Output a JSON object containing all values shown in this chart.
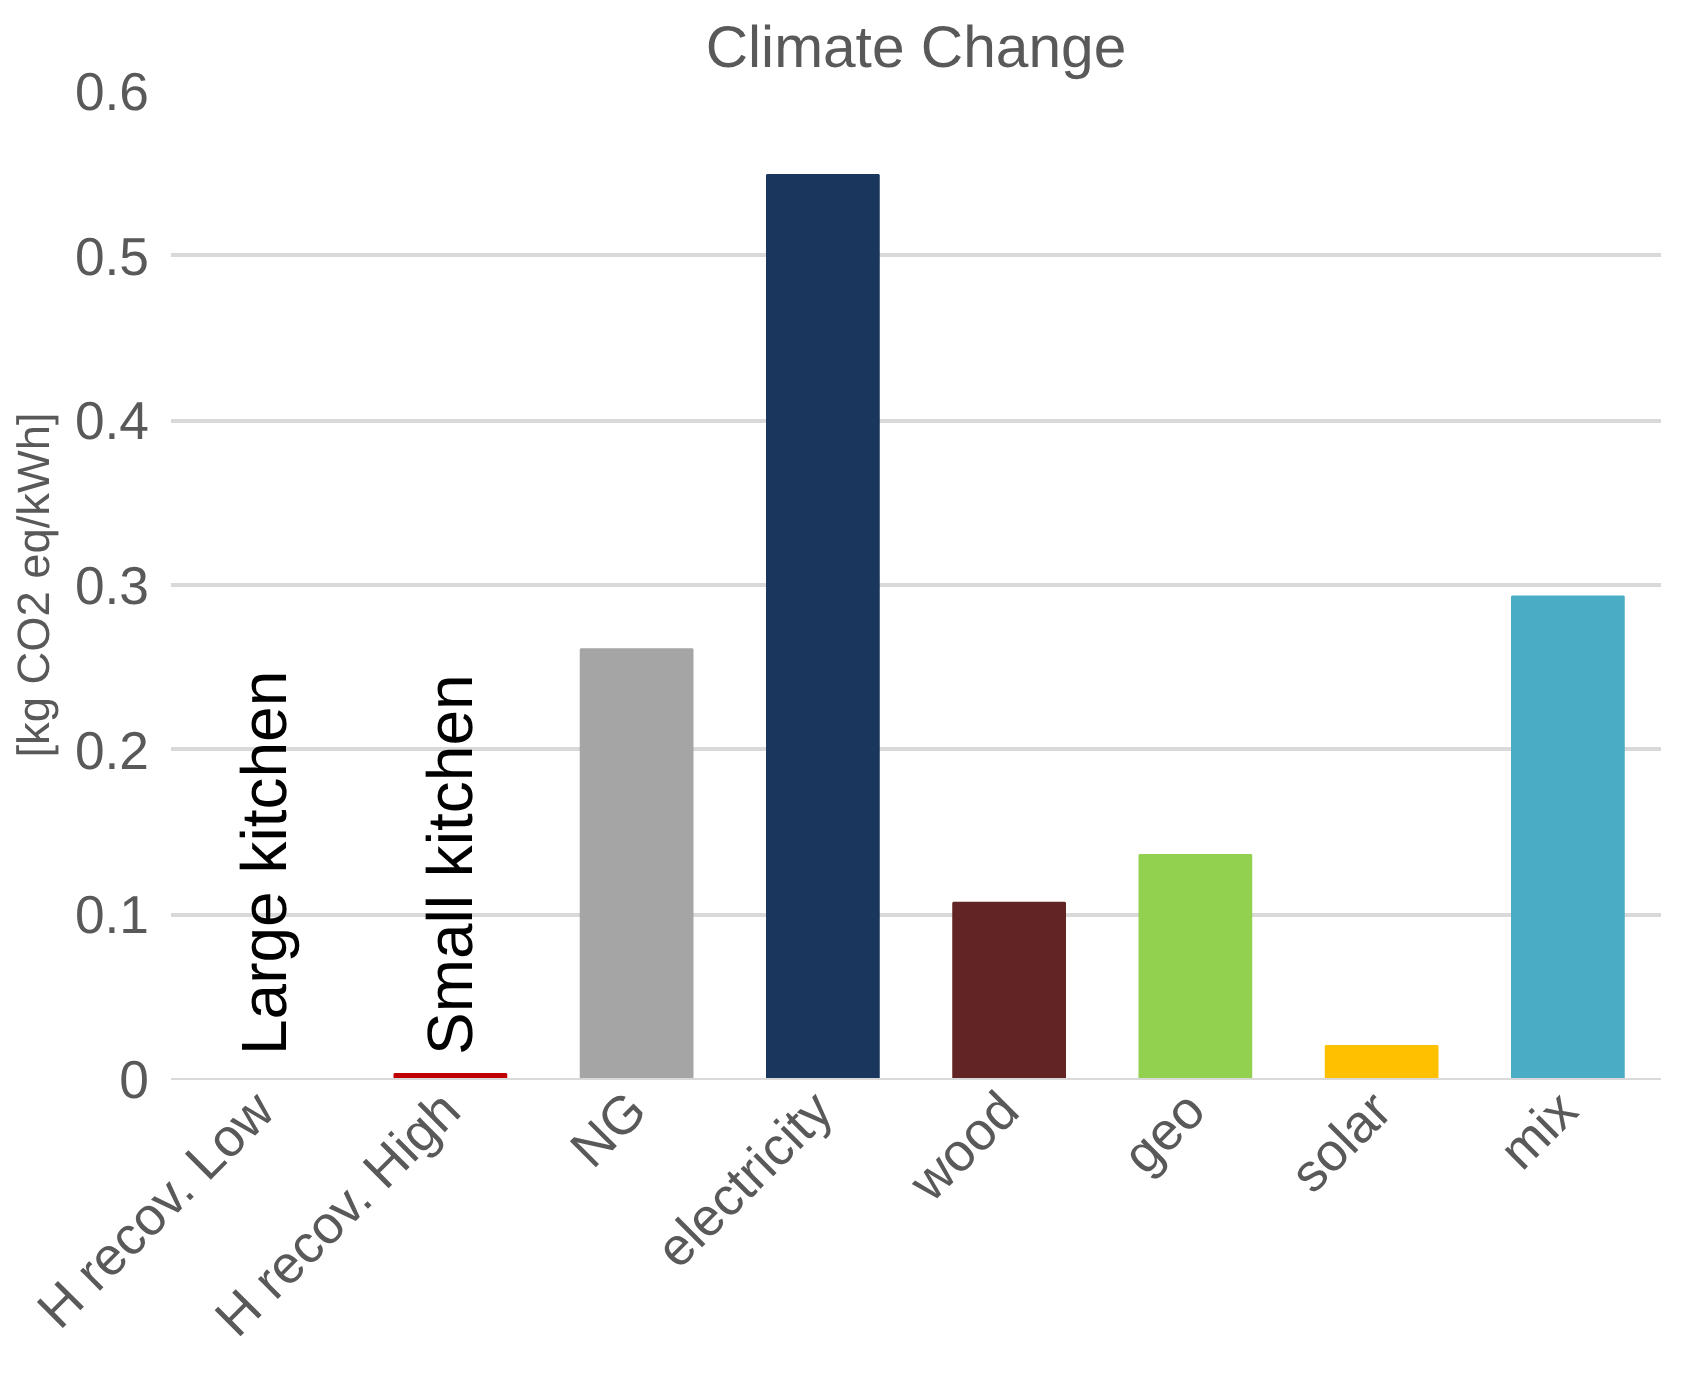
{
  "chart_data": {
    "type": "bar",
    "title": "Climate Change",
    "ylabel": "[kg CO2 eq/kWh]",
    "categories": [
      "H recov. Low",
      "H recov. High",
      "NG",
      "electricity",
      "wood",
      "geo",
      "solar",
      "mix"
    ],
    "values": [
      0,
      0.003,
      0.261,
      0.549,
      0.107,
      0.136,
      0.02,
      0.293
    ],
    "colors": [
      "#c00000",
      "#c00000",
      "#a5a5a5",
      "#1a365d",
      "#622424",
      "#92d050",
      "#ffc000",
      "#4bacc6"
    ],
    "ylim": [
      0,
      0.6
    ],
    "yticks": [
      0,
      0.1,
      0.2,
      0.3,
      0.4,
      0.5,
      0.6
    ],
    "grid": "y",
    "annotations": [
      "Large kitchen",
      "Small kitchen"
    ]
  }
}
